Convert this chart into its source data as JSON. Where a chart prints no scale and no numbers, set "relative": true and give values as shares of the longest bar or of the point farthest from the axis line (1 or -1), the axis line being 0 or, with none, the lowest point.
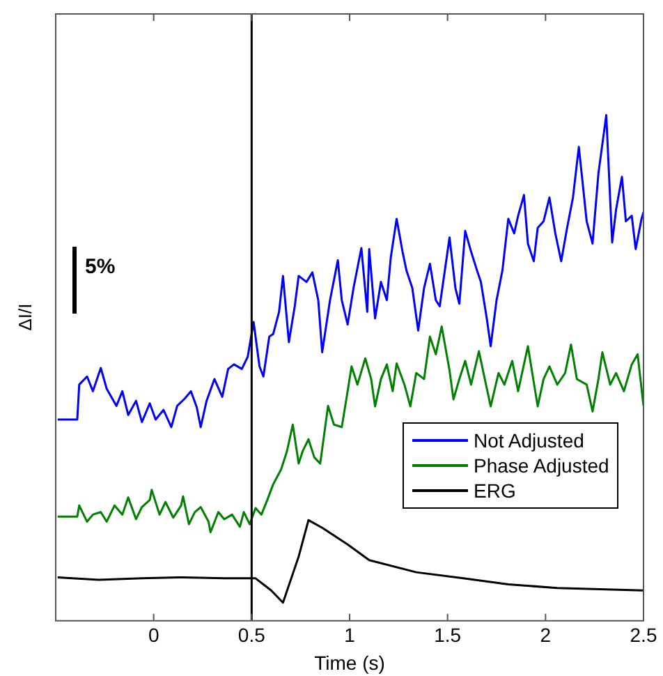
{
  "chart_data": {
    "type": "line",
    "relative": true,
    "xlabel": "Time (s)",
    "ylabel": "ΔI/I",
    "xlim": [
      -0.5,
      2.5
    ],
    "xticks": [
      0,
      0.5,
      1,
      1.5,
      2,
      2.5
    ],
    "tick_labels": "x",
    "grid": false,
    "legend": "bottom right",
    "marker": "none",
    "annotations": [
      "5%"
    ],
    "ref_lines": [
      {
        "axis": "x",
        "value": 0.5,
        "color": "#000000"
      }
    ],
    "series": [
      {
        "name": "Not Adjusted",
        "color": "#0000ff",
        "x": [
          -0.49,
          -0.39,
          -0.38,
          -0.34,
          -0.31,
          -0.27,
          -0.24,
          -0.19,
          -0.16,
          -0.13,
          -0.09,
          -0.06,
          -0.02,
          0.01,
          0.05,
          0.09,
          0.12,
          0.16,
          0.19,
          0.22,
          0.24,
          0.27,
          0.31,
          0.35,
          0.38,
          0.41,
          0.45,
          0.48,
          0.51,
          0.54,
          0.56,
          0.59,
          0.61,
          0.64,
          0.66,
          0.69,
          0.72,
          0.74,
          0.78,
          0.81,
          0.84,
          0.86,
          0.9,
          0.94,
          0.96,
          0.99,
          1.02,
          1.06,
          1.09,
          1.1,
          1.13,
          1.16,
          1.19,
          1.21,
          1.24,
          1.27,
          1.29,
          1.32,
          1.35,
          1.38,
          1.41,
          1.44,
          1.46,
          1.51,
          1.54,
          1.56,
          1.59,
          1.62,
          1.65,
          1.67,
          1.7,
          1.72,
          1.75,
          1.78,
          1.81,
          1.84,
          1.86,
          1.89,
          1.91,
          1.94,
          1.96,
          1.99,
          2.02,
          2.05,
          2.08,
          2.11,
          2.14,
          2.17,
          2.21,
          2.24,
          2.27,
          2.31,
          2.34,
          2.36,
          2.39,
          2.41,
          2.44,
          2.46,
          2.49,
          2.5
        ],
        "values": [
          0.398,
          0.398,
          0.467,
          0.483,
          0.454,
          0.5,
          0.459,
          0.425,
          0.454,
          0.407,
          0.435,
          0.393,
          0.43,
          0.398,
          0.417,
          0.383,
          0.425,
          0.44,
          0.454,
          0.422,
          0.383,
          0.435,
          0.478,
          0.443,
          0.498,
          0.507,
          0.498,
          0.522,
          0.591,
          0.503,
          0.483,
          0.562,
          0.567,
          0.611,
          0.682,
          0.551,
          0.622,
          0.682,
          0.67,
          0.689,
          0.634,
          0.531,
          0.634,
          0.713,
          0.634,
          0.586,
          0.658,
          0.737,
          0.611,
          0.735,
          0.598,
          0.67,
          0.634,
          0.718,
          0.795,
          0.73,
          0.693,
          0.658,
          0.574,
          0.658,
          0.706,
          0.634,
          0.622,
          0.758,
          0.658,
          0.627,
          0.771,
          0.73,
          0.693,
          0.67,
          0.598,
          0.543,
          0.634,
          0.693,
          0.795,
          0.766,
          0.801,
          0.842,
          0.746,
          0.711,
          0.777,
          0.79,
          0.837,
          0.766,
          0.711,
          0.777,
          0.837,
          0.937,
          0.79,
          0.746,
          0.885,
          1,
          0.748,
          0.813,
          0.878,
          0.79,
          0.801,
          0.735,
          0.795,
          0.808
        ]
      },
      {
        "name": "Phase Adjusted",
        "color": "#008000",
        "x": [
          -0.49,
          -0.39,
          -0.38,
          -0.34,
          -0.31,
          -0.27,
          -0.24,
          -0.2,
          -0.16,
          -0.13,
          -0.09,
          -0.06,
          -0.02,
          -0.01,
          0.03,
          0.06,
          0.1,
          0.14,
          0.15,
          0.18,
          0.21,
          0.24,
          0.28,
          0.29,
          0.33,
          0.36,
          0.4,
          0.44,
          0.46,
          0.49,
          0.52,
          0.55,
          0.58,
          0.61,
          0.65,
          0.68,
          0.71,
          0.74,
          0.76,
          0.79,
          0.82,
          0.85,
          0.89,
          0.92,
          0.96,
          0.99,
          1.01,
          1.04,
          1.08,
          1.11,
          1.13,
          1.16,
          1.19,
          1.22,
          1.24,
          1.28,
          1.31,
          1.34,
          1.38,
          1.41,
          1.44,
          1.47,
          1.51,
          1.53,
          1.56,
          1.59,
          1.62,
          1.66,
          1.69,
          1.72,
          1.76,
          1.79,
          1.83,
          1.86,
          1.91,
          1.96,
          1.99,
          2.02,
          2.06,
          2.1,
          2.13,
          2.16,
          2.21,
          2.24,
          2.27,
          2.29,
          2.33,
          2.36,
          2.4,
          2.44,
          2.47,
          2.5
        ],
        "values": [
          0.206,
          0.206,
          0.228,
          0.196,
          0.21,
          0.215,
          0.196,
          0.228,
          0.21,
          0.244,
          0.201,
          0.225,
          0.239,
          0.259,
          0.21,
          0.235,
          0.204,
          0.228,
          0.246,
          0.191,
          0.215,
          0.225,
          0.196,
          0.175,
          0.215,
          0.201,
          0.21,
          0.186,
          0.215,
          0.191,
          0.223,
          0.21,
          0.239,
          0.27,
          0.299,
          0.335,
          0.388,
          0.311,
          0.335,
          0.359,
          0.323,
          0.311,
          0.425,
          0.388,
          0.383,
          0.454,
          0.503,
          0.467,
          0.519,
          0.478,
          0.424,
          0.478,
          0.507,
          0.454,
          0.509,
          0.467,
          0.424,
          0.49,
          0.478,
          0.562,
          0.527,
          0.582,
          0.495,
          0.438,
          0.478,
          0.514,
          0.467,
          0.533,
          0.478,
          0.424,
          0.49,
          0.467,
          0.514,
          0.454,
          0.543,
          0.424,
          0.478,
          0.503,
          0.467,
          0.49,
          0.546,
          0.478,
          0.467,
          0.414,
          0.478,
          0.531,
          0.467,
          0.49,
          0.454,
          0.507,
          0.527,
          0.425
        ]
      },
      {
        "name": "ERG",
        "color": "#000000",
        "x": [
          -0.49,
          -0.28,
          -0.06,
          0.15,
          0.36,
          0.52,
          0.6,
          0.66,
          0.74,
          0.79,
          0.86,
          0.99,
          1.1,
          1.34,
          1.58,
          1.81,
          2.06,
          2.5
        ],
        "values": [
          0.086,
          0.081,
          0.084,
          0.086,
          0.084,
          0.084,
          0.06,
          0.036,
          0.127,
          0.199,
          0.184,
          0.151,
          0.12,
          0.096,
          0.084,
          0.072,
          0.065,
          0.06
        ]
      }
    ]
  }
}
